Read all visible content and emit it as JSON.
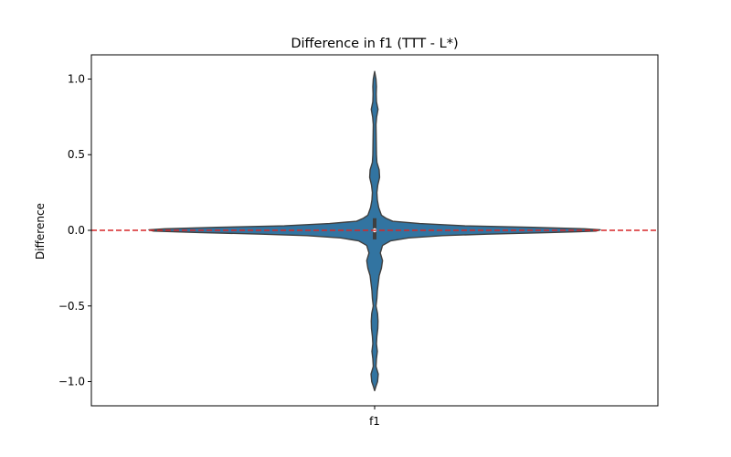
{
  "chart_data": {
    "type": "violin",
    "title": "Difference in f1 (TTT - L*)",
    "xlabel": "",
    "ylabel": "Difference",
    "categories": [
      "f1"
    ],
    "ylim": [
      -1.16,
      1.16
    ],
    "yticks": [
      {
        "value": 1.0,
        "label": "1.0"
      },
      {
        "value": 0.5,
        "label": "0.5"
      },
      {
        "value": 0.0,
        "label": "0.0"
      },
      {
        "value": -0.5,
        "label": "−0.5"
      },
      {
        "value": -1.0,
        "label": "−1.0"
      }
    ],
    "violin": {
      "category": "f1",
      "color": "#3274a1",
      "edge_color": "#3f3f3f",
      "density_profile": [
        {
          "y": 1.05,
          "w": 0.0
        },
        {
          "y": 1.0,
          "w": 0.006
        },
        {
          "y": 0.95,
          "w": 0.008
        },
        {
          "y": 0.9,
          "w": 0.007
        },
        {
          "y": 0.85,
          "w": 0.008
        },
        {
          "y": 0.8,
          "w": 0.015
        },
        {
          "y": 0.75,
          "w": 0.009
        },
        {
          "y": 0.7,
          "w": 0.006
        },
        {
          "y": 0.6,
          "w": 0.007
        },
        {
          "y": 0.5,
          "w": 0.008
        },
        {
          "y": 0.45,
          "w": 0.01
        },
        {
          "y": 0.4,
          "w": 0.02
        },
        {
          "y": 0.35,
          "w": 0.022
        },
        {
          "y": 0.3,
          "w": 0.014
        },
        {
          "y": 0.25,
          "w": 0.01
        },
        {
          "y": 0.2,
          "w": 0.012
        },
        {
          "y": 0.15,
          "w": 0.018
        },
        {
          "y": 0.1,
          "w": 0.03
        },
        {
          "y": 0.08,
          "w": 0.05
        },
        {
          "y": 0.06,
          "w": 0.08
        },
        {
          "y": 0.045,
          "w": 0.2
        },
        {
          "y": 0.03,
          "w": 0.4
        },
        {
          "y": 0.02,
          "w": 0.7
        },
        {
          "y": 0.01,
          "w": 0.93
        },
        {
          "y": 0.003,
          "w": 1.0
        },
        {
          "y": -0.005,
          "w": 0.98
        },
        {
          "y": -0.015,
          "w": 0.78
        },
        {
          "y": -0.025,
          "w": 0.5
        },
        {
          "y": -0.035,
          "w": 0.3
        },
        {
          "y": -0.05,
          "w": 0.15
        },
        {
          "y": -0.07,
          "w": 0.07
        },
        {
          "y": -0.1,
          "w": 0.035
        },
        {
          "y": -0.15,
          "w": 0.025
        },
        {
          "y": -0.2,
          "w": 0.035
        },
        {
          "y": -0.25,
          "w": 0.03
        },
        {
          "y": -0.3,
          "w": 0.02
        },
        {
          "y": -0.35,
          "w": 0.016
        },
        {
          "y": -0.4,
          "w": 0.012
        },
        {
          "y": -0.45,
          "w": 0.01
        },
        {
          "y": -0.5,
          "w": 0.006
        },
        {
          "y": -0.55,
          "w": 0.013
        },
        {
          "y": -0.6,
          "w": 0.015
        },
        {
          "y": -0.65,
          "w": 0.014
        },
        {
          "y": -0.7,
          "w": 0.01
        },
        {
          "y": -0.75,
          "w": 0.008
        },
        {
          "y": -0.8,
          "w": 0.012
        },
        {
          "y": -0.85,
          "w": 0.008
        },
        {
          "y": -0.9,
          "w": 0.006
        },
        {
          "y": -0.95,
          "w": 0.016
        },
        {
          "y": -1.0,
          "w": 0.013
        },
        {
          "y": -1.03,
          "w": 0.006
        },
        {
          "y": -1.06,
          "w": 0.0
        }
      ],
      "median": 0.0
    },
    "reference_line": {
      "y": 0.0,
      "color": "#d62728",
      "style": "dashed"
    },
    "grid": false,
    "legend": "none"
  }
}
